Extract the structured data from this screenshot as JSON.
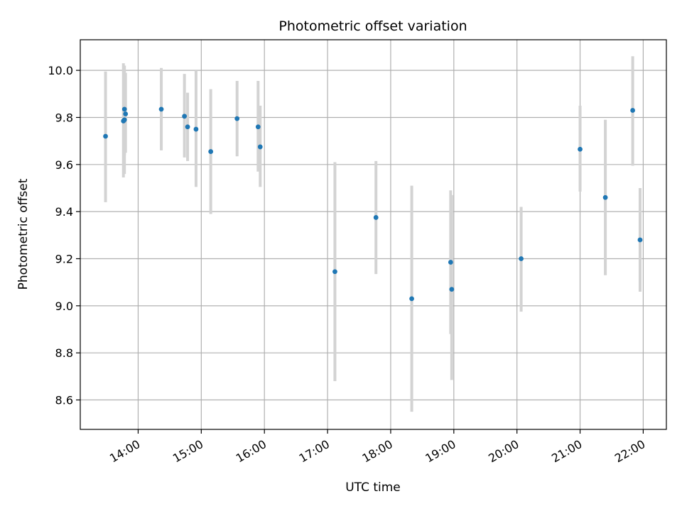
{
  "chart_data": {
    "type": "scatter",
    "title": "Photometric offset variation",
    "xlabel": "UTC time",
    "ylabel": "Photometric offset",
    "xlim": [
      "13:05",
      "22:22"
    ],
    "ylim": [
      8.475,
      10.13
    ],
    "x_ticks": [
      "14:00",
      "15:00",
      "16:00",
      "17:00",
      "18:00",
      "19:00",
      "20:00",
      "21:00",
      "22:00"
    ],
    "y_ticks": [
      "8.6",
      "8.8",
      "9.0",
      "9.2",
      "9.4",
      "9.6",
      "9.8",
      "10.0"
    ],
    "grid": true,
    "point_color": "#1f77b4",
    "errorbar_color": "#d3d3d3",
    "points": [
      {
        "x": "13:29",
        "y": 9.72,
        "low": 9.44,
        "high": 9.995
      },
      {
        "x": "13:46",
        "y": 9.785,
        "low": 9.545,
        "high": 10.03
      },
      {
        "x": "13:47",
        "y": 9.79,
        "low": 9.56,
        "high": 9.98
      },
      {
        "x": "13:47",
        "y": 9.835,
        "low": 9.64,
        "high": 10.02
      },
      {
        "x": "13:48",
        "y": 9.815,
        "low": 9.65,
        "high": 9.99
      },
      {
        "x": "14:22",
        "y": 9.835,
        "low": 9.66,
        "high": 10.01
      },
      {
        "x": "14:44",
        "y": 9.805,
        "low": 9.63,
        "high": 9.985
      },
      {
        "x": "14:47",
        "y": 9.76,
        "low": 9.615,
        "high": 9.905
      },
      {
        "x": "14:55",
        "y": 9.75,
        "low": 9.505,
        "high": 10.0
      },
      {
        "x": "15:09",
        "y": 9.655,
        "low": 9.39,
        "high": 9.92
      },
      {
        "x": "15:34",
        "y": 9.795,
        "low": 9.635,
        "high": 9.955
      },
      {
        "x": "15:54",
        "y": 9.76,
        "low": 9.57,
        "high": 9.955
      },
      {
        "x": "15:56",
        "y": 9.675,
        "low": 9.505,
        "high": 9.85
      },
      {
        "x": "17:07",
        "y": 9.145,
        "low": 8.68,
        "high": 9.61
      },
      {
        "x": "17:46",
        "y": 9.375,
        "low": 9.135,
        "high": 9.615
      },
      {
        "x": "18:20",
        "y": 9.03,
        "low": 8.55,
        "high": 9.51
      },
      {
        "x": "18:57",
        "y": 9.185,
        "low": 8.88,
        "high": 9.49
      },
      {
        "x": "18:58",
        "y": 9.07,
        "low": 8.685,
        "high": 9.47
      },
      {
        "x": "20:04",
        "y": 9.2,
        "low": 8.975,
        "high": 9.42
      },
      {
        "x": "21:00",
        "y": 9.665,
        "low": 9.485,
        "high": 9.85
      },
      {
        "x": "21:24",
        "y": 9.46,
        "low": 9.13,
        "high": 9.79
      },
      {
        "x": "21:50",
        "y": 9.83,
        "low": 9.595,
        "high": 10.06
      },
      {
        "x": "21:57",
        "y": 9.28,
        "low": 9.06,
        "high": 9.5
      }
    ]
  }
}
